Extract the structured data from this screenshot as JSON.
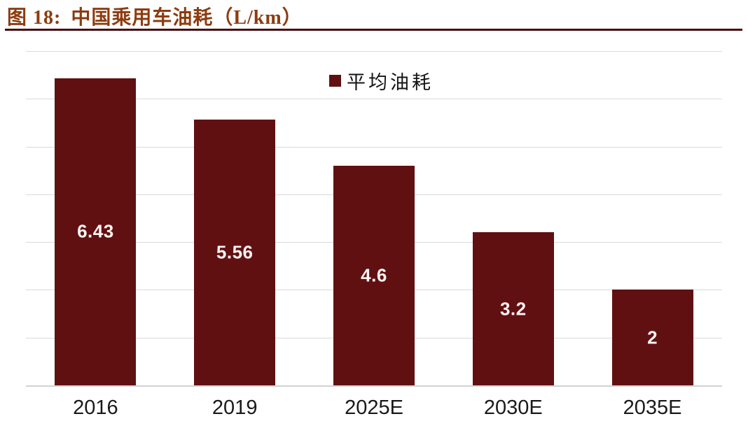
{
  "header": {
    "figure_label": "图 18:",
    "title": "中国乘用车油耗（L/km）"
  },
  "legend": {
    "label": "平均油耗"
  },
  "chart_data": {
    "type": "bar",
    "title": "中国乘用车油耗（L/km）",
    "categories": [
      "2016",
      "2019",
      "2025E",
      "2030E",
      "2035E"
    ],
    "series": [
      {
        "name": "平均油耗",
        "values": [
          6.43,
          5.56,
          4.6,
          3.2,
          2
        ],
        "value_labels": [
          "6.43",
          "5.56",
          "4.6",
          "3.2",
          "2"
        ]
      }
    ],
    "xlabel": "",
    "ylabel": "",
    "ylim": [
      0,
      7
    ],
    "gridline_step": 1,
    "grid": true,
    "y_axis_labels_shown": false,
    "legend_position": "top-center",
    "value_label_position": "center-of-bar"
  },
  "colors": {
    "bar": "#611012",
    "title_accent": "#8c3c10",
    "title_rule": "#470c11",
    "gridline": "#dadada",
    "axis_line": "#d2d2d2",
    "value_label": "#fdf4f2",
    "x_label": "#1a1a1a"
  }
}
